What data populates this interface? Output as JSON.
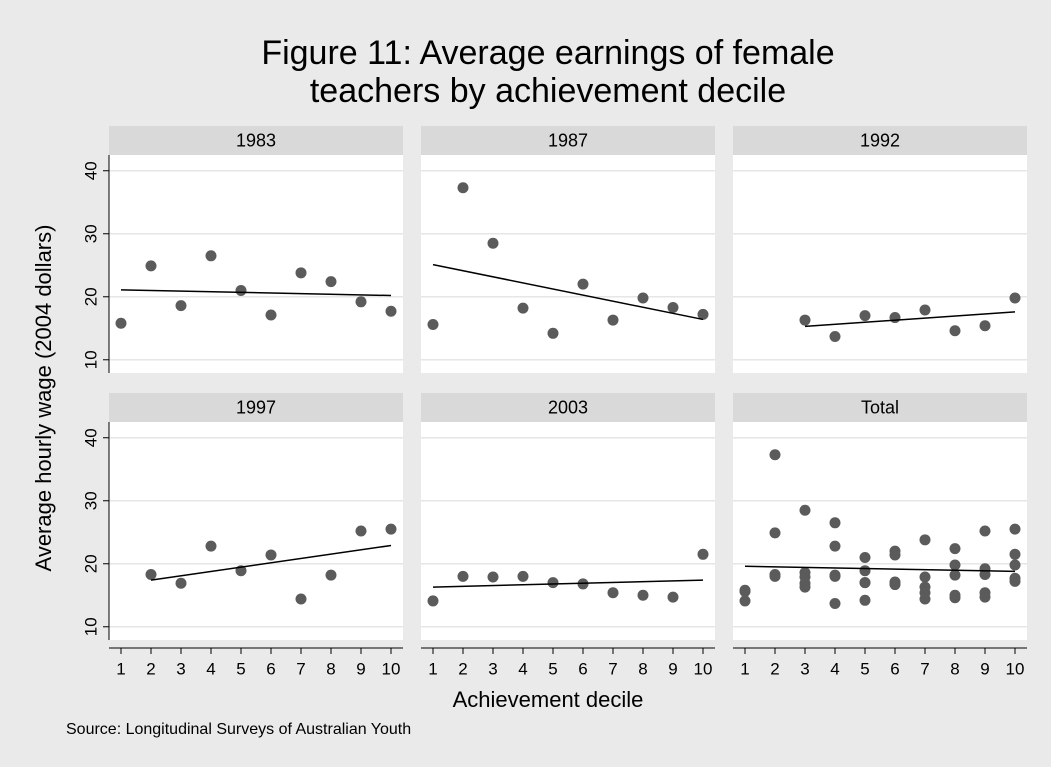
{
  "title": [
    "Figure 11: Average earnings of female",
    "teachers by achievement decile"
  ],
  "ylabel": "Average hourly wage (2004 dollars)",
  "xlabel": "Achievement decile",
  "source": "Source: Longitudinal Surveys of Australian Youth",
  "xlim": [
    0.6,
    10.4
  ],
  "ylim": [
    7.9,
    42.5
  ],
  "xticks": [
    1,
    2,
    3,
    4,
    5,
    6,
    7,
    8,
    9,
    10
  ],
  "yticks": [
    10,
    20,
    30,
    40
  ],
  "grid": true,
  "marker_color": "#5b5b5b",
  "fit_color": "#000000",
  "chart_data": [
    {
      "type": "scatter",
      "title": "1983",
      "x": [
        1,
        2,
        3,
        4,
        5,
        6,
        7,
        8,
        9,
        10
      ],
      "values": [
        15.8,
        24.9,
        18.6,
        26.5,
        21.0,
        17.1,
        23.8,
        22.4,
        19.2,
        17.7
      ],
      "fit": {
        "x": [
          1,
          10
        ],
        "values": [
          21.1,
          20.2
        ]
      }
    },
    {
      "type": "scatter",
      "title": "1987",
      "x": [
        1,
        2,
        3,
        4,
        5,
        6,
        7,
        8,
        9,
        10
      ],
      "values": [
        15.6,
        37.3,
        28.5,
        18.2,
        14.2,
        22.0,
        16.3,
        19.8,
        18.3,
        17.2
      ],
      "fit": {
        "x": [
          1,
          10
        ],
        "values": [
          25.1,
          16.4
        ]
      }
    },
    {
      "type": "scatter",
      "title": "1992",
      "x": [
        3,
        4,
        5,
        6,
        7,
        8,
        9,
        10
      ],
      "values": [
        16.3,
        13.7,
        17.0,
        16.7,
        17.9,
        14.6,
        15.4,
        19.8
      ],
      "fit": {
        "x": [
          3,
          10
        ],
        "values": [
          15.3,
          17.6
        ]
      }
    },
    {
      "type": "scatter",
      "title": "1997",
      "x": [
        2,
        3,
        4,
        5,
        6,
        7,
        8,
        9,
        10
      ],
      "values": [
        18.3,
        16.9,
        22.8,
        18.9,
        21.4,
        14.4,
        18.2,
        25.2,
        25.5
      ],
      "fit": {
        "x": [
          2,
          10
        ],
        "values": [
          17.4,
          22.9
        ]
      }
    },
    {
      "type": "scatter",
      "title": "2003",
      "x": [
        1,
        2,
        3,
        4,
        5,
        6,
        7,
        8,
        9,
        10
      ],
      "values": [
        14.1,
        18.0,
        17.9,
        18.0,
        17.0,
        16.8,
        15.4,
        15.0,
        14.7,
        21.5
      ],
      "fit": {
        "x": [
          1,
          10
        ],
        "values": [
          16.3,
          17.4
        ]
      }
    },
    {
      "type": "scatter",
      "title": "Total",
      "x": [
        1,
        1,
        1,
        2,
        2,
        2,
        2,
        3,
        3,
        3,
        3,
        3,
        4,
        4,
        4,
        4,
        4,
        5,
        5,
        5,
        5,
        5,
        6,
        6,
        6,
        6,
        6,
        7,
        7,
        7,
        7,
        7,
        8,
        8,
        8,
        8,
        8,
        9,
        9,
        9,
        9,
        9,
        10,
        10,
        10,
        10,
        10
      ],
      "values": [
        15.8,
        15.6,
        14.1,
        24.9,
        37.3,
        18.3,
        18.0,
        18.6,
        28.5,
        16.3,
        16.9,
        17.9,
        26.5,
        18.2,
        13.7,
        22.8,
        18.0,
        21.0,
        14.2,
        17.0,
        18.9,
        17.0,
        17.1,
        22.0,
        16.7,
        21.4,
        16.8,
        23.8,
        16.3,
        17.9,
        14.4,
        15.4,
        22.4,
        19.8,
        14.6,
        18.2,
        15.0,
        19.2,
        18.3,
        15.4,
        25.2,
        14.7,
        17.7,
        17.2,
        19.8,
        25.5,
        21.5
      ],
      "fit": {
        "x": [
          1,
          10
        ],
        "values": [
          19.6,
          18.8
        ]
      }
    }
  ]
}
